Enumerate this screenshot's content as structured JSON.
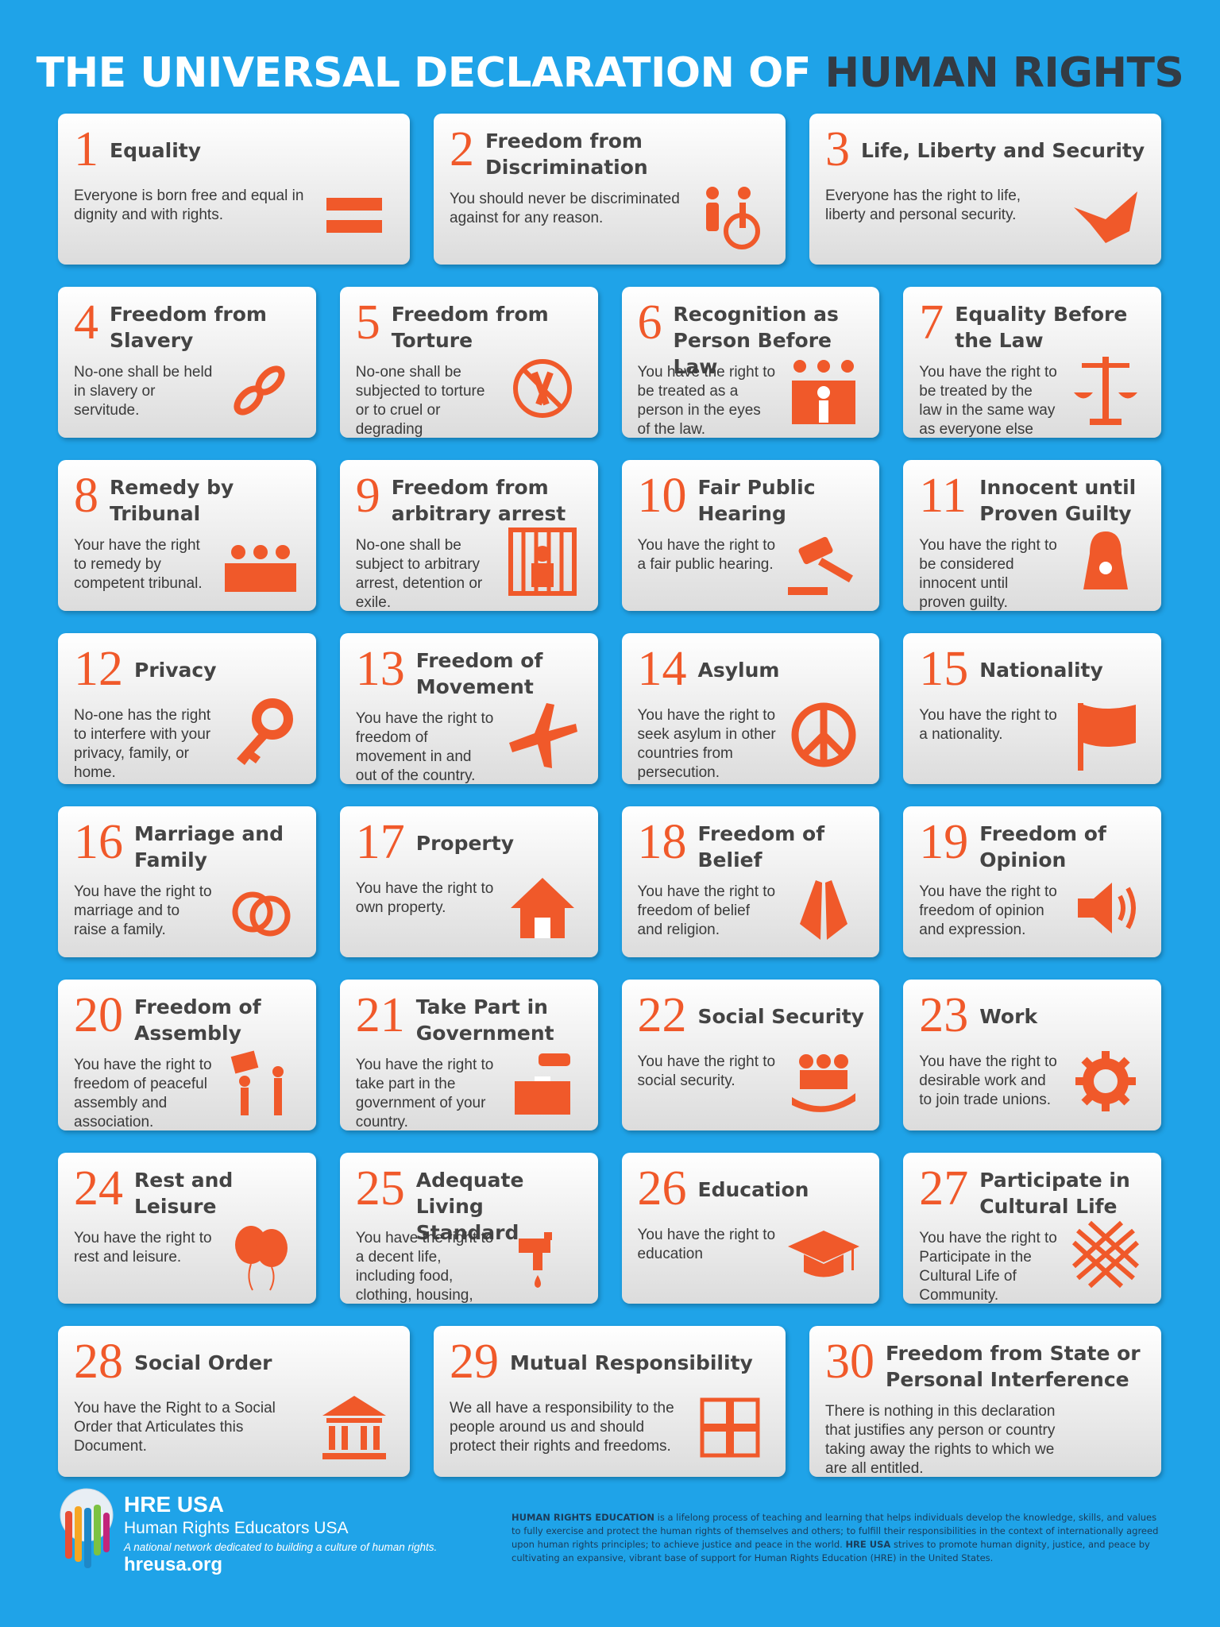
{
  "header": {
    "title_light": "THE UNIVERSAL DECLARATION OF",
    "title_dark": "HUMAN RIGHTS"
  },
  "cards": [
    {
      "number": "1",
      "title": "Equality",
      "text": "Everyone is born free and equal in dignity and with rights."
    },
    {
      "number": "2",
      "title": "Freedom from Discrimination",
      "text": "You should never be discriminated against for any reason."
    },
    {
      "number": "3",
      "title": "Life, Liberty and Security",
      "text": "Everyone has the right to life, liberty and personal security."
    },
    {
      "number": "4",
      "title": "Freedom from Slavery",
      "text": "No-one shall be held in slavery or servitude."
    },
    {
      "number": "5",
      "title": "Freedom from Torture",
      "text": "No-one shall be subjected to torture or to cruel or degrading treatment."
    },
    {
      "number": "6",
      "title": "Recognition as Person Before Law",
      "text": "You have the right to be treated as a person in the eyes of the law."
    },
    {
      "number": "7",
      "title": "Equality Before the Law",
      "text": "You have the right to be treated by the law in the same way as everyone else"
    },
    {
      "number": "8",
      "title": "Remedy by Tribunal",
      "text": "Your have the right to remedy by competent tribunal."
    },
    {
      "number": "9",
      "title": "Freedom from arbitrary arrest",
      "text": "No-one shall be subject to arbitrary arrest, detention or exile."
    },
    {
      "number": "10",
      "title": "Fair Public Hearing",
      "text": "You have the right to a fair public hearing."
    },
    {
      "number": "11",
      "title": "Innocent until Proven Guilty",
      "text": "You have the right to be considered innocent until proven guilty."
    },
    {
      "number": "12",
      "title": "Privacy",
      "text": "No-one has the right to interfere with your privacy, family, or home."
    },
    {
      "number": "13",
      "title": "Freedom of Movement",
      "text": "You have the right to freedom of movement in and out of the country."
    },
    {
      "number": "14",
      "title": "Asylum",
      "text": "You have the right to seek asylum in other countries from persecution."
    },
    {
      "number": "15",
      "title": "Nationality",
      "text": "You have the right to a nationality."
    },
    {
      "number": "16",
      "title": "Marriage and Family",
      "text": "You have the right to marriage and to raise a family."
    },
    {
      "number": "17",
      "title": "Property",
      "text": "You have the right to own property."
    },
    {
      "number": "18",
      "title": "Freedom of Belief",
      "text": "You have the right to freedom of belief and religion."
    },
    {
      "number": "19",
      "title": "Freedom of Opinion",
      "text": "You have the right to freedom of opinion and expression."
    },
    {
      "number": "20",
      "title": "Freedom of Assembly",
      "text": "You have the right to freedom of peaceful assembly and association."
    },
    {
      "number": "21",
      "title": "Take Part in Government",
      "text": "You have the right to take part in the government of your country."
    },
    {
      "number": "22",
      "title": "Social Security",
      "text": "You have the right to social security."
    },
    {
      "number": "23",
      "title": "Work",
      "text": "You have the right to desirable work and to join trade unions."
    },
    {
      "number": "24",
      "title": "Rest and Leisure",
      "text": "You have the right to rest and leisure."
    },
    {
      "number": "25",
      "title": "Adequate Living Standard",
      "text": "You have the right to a decent life, including food, clothing, housing, and medical care."
    },
    {
      "number": "26",
      "title": "Education",
      "text": "You have the right to education"
    },
    {
      "number": "27",
      "title": "Participate in Cultural Life",
      "text": "You have the right to Participate in the Cultural Life of Community."
    },
    {
      "number": "28",
      "title": "Social Order",
      "text": "You have the Right to a Social Order that Articulates this Document."
    },
    {
      "number": "29",
      "title": "Mutual Responsibility",
      "text": "We all have a responsibility to the people around us and should protect their rights and freedoms."
    },
    {
      "number": "30",
      "title": "Freedom from State or Personal Interference",
      "text": "There is nothing in this declaration that justifies any person or country taking away the rights to which we are all entitled."
    }
  ],
  "footer": {
    "org": "HRE USA",
    "org_full": "Human Rights Educators USA",
    "tagline": "A national network dedicated to building a culture of human rights.",
    "url": "hreusa.org",
    "about": [
      "HUMAN RIGHTS EDUCATION",
      " is a lifelong process of teaching and learning that helps individuals develop the knowledge, skills, and values to fully exercise and protect the human rights of themselves and others; to fulfill their responsibilities in the context of internationally agreed upon human rights principles; to achieve justice and peace in the world. ",
      "HRE USA",
      " strives to promote human dignity, justice, and peace by cultivating an expansive, vibrant base of support for Human Rights Education (HRE) in the United States."
    ]
  }
}
